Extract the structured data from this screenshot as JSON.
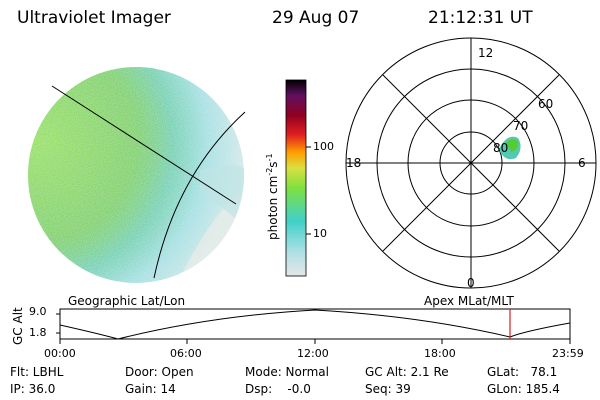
{
  "header": {
    "instrument": "Ultraviolet Imager",
    "date": "29 Aug 07",
    "time": "21:12:31 UT"
  },
  "colorbar": {
    "unit_label": "photon cm",
    "unit_sup1": "-2",
    "unit_mid": "s",
    "unit_sup2": "-1",
    "ticks": [
      "100",
      "10"
    ],
    "colors": [
      "#e6e6e6",
      "#b0e0e6",
      "#40d0c8",
      "#80e040",
      "#d8e040",
      "#ffa000",
      "#e02020",
      "#900020",
      "#601060",
      "#000000"
    ]
  },
  "polar": {
    "mlt_labels": [
      "12",
      "18",
      "6",
      "0"
    ],
    "lat_labels": [
      "60",
      "70",
      "80"
    ]
  },
  "altitude_panel": {
    "ylabel": "GC Alt",
    "yticks": [
      "9.0",
      "1.8"
    ],
    "left_title": "Geographic Lat/Lon",
    "right_title": "Apex MLat/MLT",
    "xticks": [
      "00:00",
      "06:00",
      "12:00",
      "18:00",
      "23:59"
    ],
    "marker_color": "#d02020"
  },
  "status": {
    "flt": "Flt: LBHL",
    "ip": "IP: 36.0",
    "door": "Door: Open",
    "gain": "Gain: 14",
    "mode": "Mode: Normal",
    "dsp": "Dsp:    -0.0",
    "gc_alt": "GC Alt: 2.1 Re",
    "seq": "Seq: 39",
    "glat": "GLat:   78.1",
    "glon": "GLon: 185.4"
  },
  "colors": {
    "earth_green": "#66cc33",
    "earth_cyan": "#66d0c8",
    "earth_pale": "#d8e8e8"
  }
}
